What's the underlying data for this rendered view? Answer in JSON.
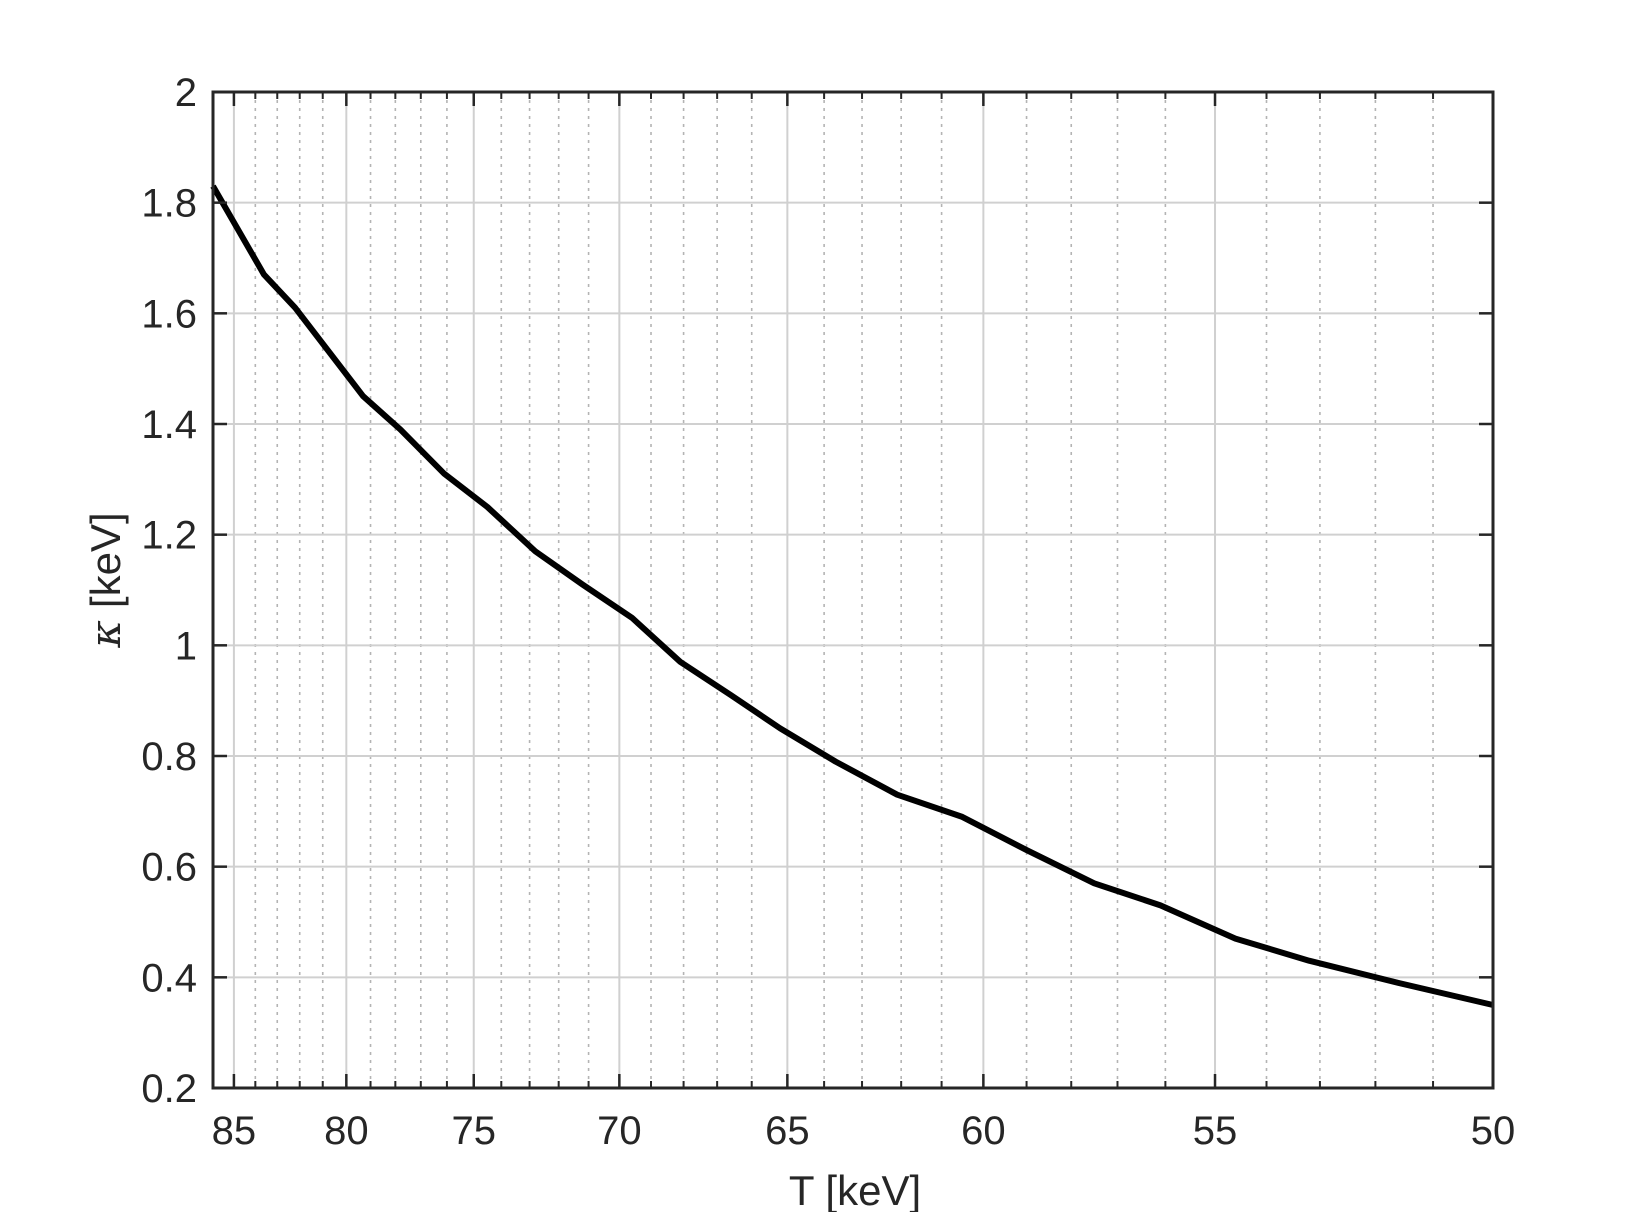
{
  "chart_data": {
    "type": "line",
    "title": "",
    "xlabel": "T [keV]",
    "ylabel_symbol": "κ",
    "ylabel_unit": "[keV]",
    "x_reversed": true,
    "x_scale": "reciprocal",
    "xlim": [
      86,
      50
    ],
    "ylim": [
      0.2,
      2
    ],
    "x_ticks": [
      85,
      80,
      75,
      70,
      65,
      60,
      55,
      50
    ],
    "y_ticks": [
      "0.2",
      "0.4",
      "0.6",
      "0.8",
      "1",
      "1.2",
      "1.4",
      "1.6",
      "1.8",
      "2"
    ],
    "grid": true,
    "minor_grid_x": true,
    "line_color": "#000000",
    "series": [
      {
        "x": [
          86,
          83.6,
          82.2,
          79.3,
          77.8,
          76.1,
          74.5,
          72.8,
          71.2,
          69.6,
          68.1,
          66.6,
          65.2,
          63.7,
          62.1,
          60.5,
          59.0,
          57.5,
          56.1,
          54.6,
          53.2,
          51.6,
          50
        ],
        "values": [
          1.83,
          1.67,
          1.61,
          1.45,
          1.39,
          1.31,
          1.25,
          1.17,
          1.11,
          1.05,
          0.97,
          0.91,
          0.85,
          0.79,
          0.73,
          0.69,
          0.63,
          0.57,
          0.53,
          0.47,
          0.43,
          0.39,
          0.35
        ]
      }
    ]
  }
}
